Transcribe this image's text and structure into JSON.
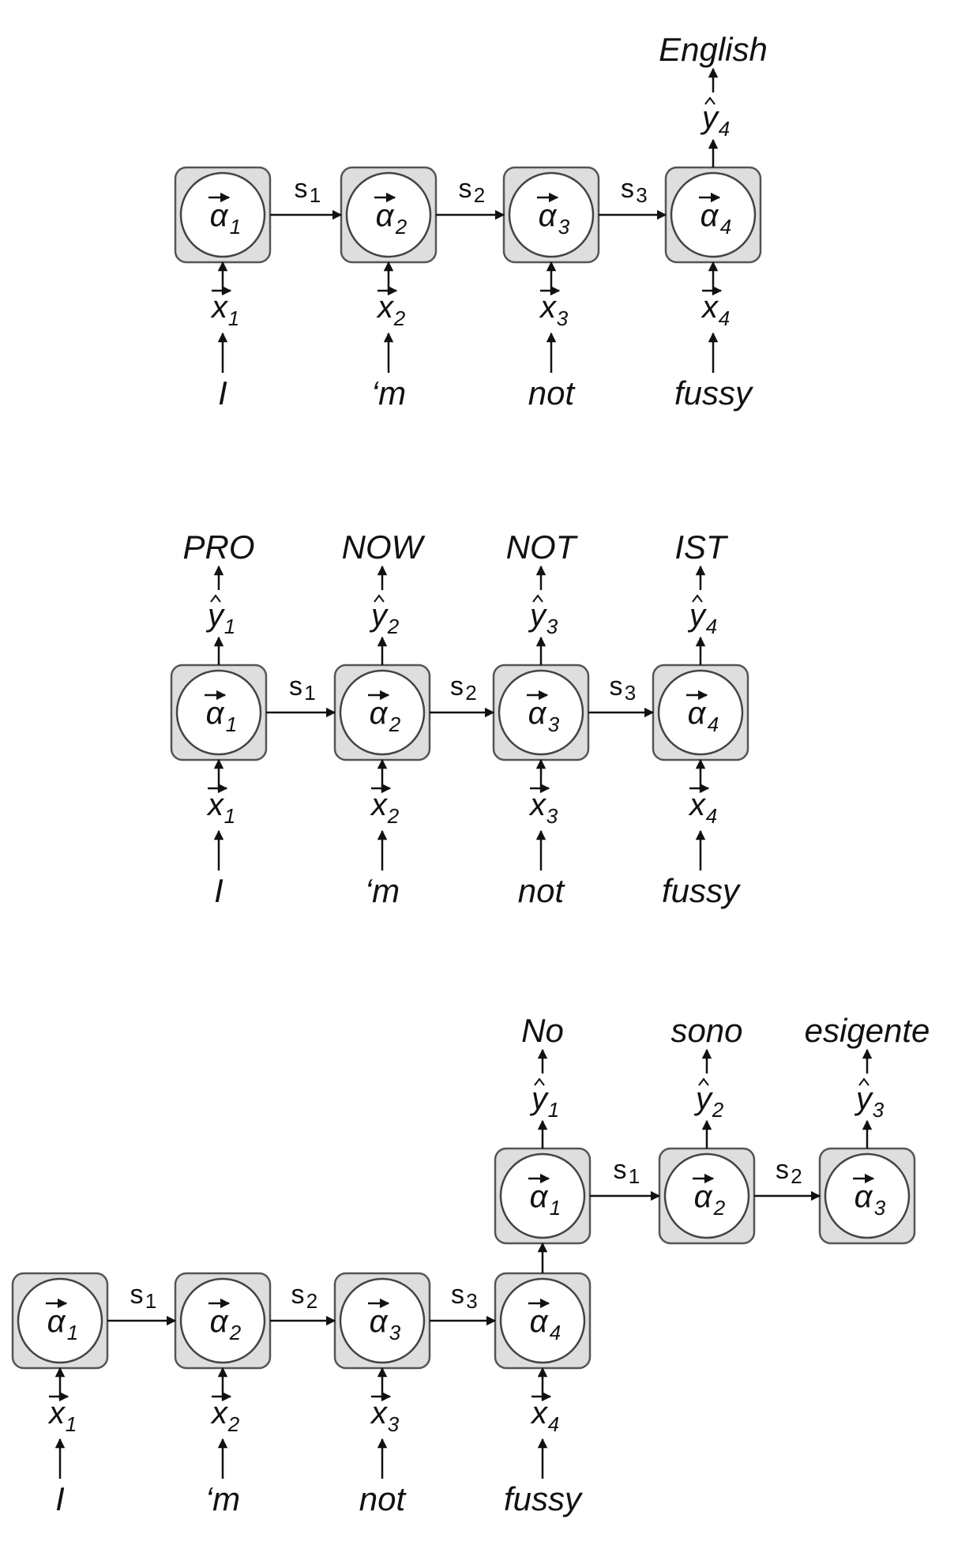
{
  "diagrams": [
    {
      "inputs": [
        "I",
        "‘m",
        "not",
        "fussy"
      ],
      "x_symbols": [
        {
          "s": "x",
          "i": "1"
        },
        {
          "s": "x",
          "i": "2"
        },
        {
          "s": "x",
          "i": "3"
        },
        {
          "s": "x",
          "i": "4"
        }
      ],
      "cells": [
        {
          "s": "α",
          "i": "1"
        },
        {
          "s": "α",
          "i": "2"
        },
        {
          "s": "α",
          "i": "3"
        },
        {
          "s": "α",
          "i": "4"
        }
      ],
      "states": [
        {
          "s": "s",
          "i": "1"
        },
        {
          "s": "s",
          "i": "2"
        },
        {
          "s": "s",
          "i": "3"
        }
      ],
      "outputs": [
        {
          "cell": 3,
          "y": {
            "s": "y",
            "i": "4"
          },
          "word": "English"
        }
      ]
    },
    {
      "inputs": [
        "I",
        "‘m",
        "not",
        "fussy"
      ],
      "x_symbols": [
        {
          "s": "x",
          "i": "1"
        },
        {
          "s": "x",
          "i": "2"
        },
        {
          "s": "x",
          "i": "3"
        },
        {
          "s": "x",
          "i": "4"
        }
      ],
      "cells": [
        {
          "s": "α",
          "i": "1"
        },
        {
          "s": "α",
          "i": "2"
        },
        {
          "s": "α",
          "i": "3"
        },
        {
          "s": "α",
          "i": "4"
        }
      ],
      "states": [
        {
          "s": "s",
          "i": "1"
        },
        {
          "s": "s",
          "i": "2"
        },
        {
          "s": "s",
          "i": "3"
        }
      ],
      "outputs": [
        {
          "cell": 0,
          "y": {
            "s": "y",
            "i": "1"
          },
          "word": "PRO"
        },
        {
          "cell": 1,
          "y": {
            "s": "y",
            "i": "2"
          },
          "word": "NOW"
        },
        {
          "cell": 2,
          "y": {
            "s": "y",
            "i": "3"
          },
          "word": "NOT"
        },
        {
          "cell": 3,
          "y": {
            "s": "y",
            "i": "4"
          },
          "word": "IST"
        }
      ]
    },
    {
      "encoder": {
        "inputs": [
          "I",
          "‘m",
          "not",
          "fussy"
        ],
        "x_symbols": [
          {
            "s": "x",
            "i": "1"
          },
          {
            "s": "x",
            "i": "2"
          },
          {
            "s": "x",
            "i": "3"
          },
          {
            "s": "x",
            "i": "4"
          }
        ],
        "cells": [
          {
            "s": "α",
            "i": "1"
          },
          {
            "s": "α",
            "i": "2"
          },
          {
            "s": "α",
            "i": "3"
          },
          {
            "s": "α",
            "i": "4"
          }
        ],
        "states": [
          {
            "s": "s",
            "i": "1"
          },
          {
            "s": "s",
            "i": "2"
          },
          {
            "s": "s",
            "i": "3"
          }
        ]
      },
      "decoder": {
        "cells": [
          {
            "s": "α",
            "i": "1"
          },
          {
            "s": "α",
            "i": "2"
          },
          {
            "s": "α",
            "i": "3"
          }
        ],
        "states": [
          {
            "s": "s",
            "i": "1"
          },
          {
            "s": "s",
            "i": "2"
          }
        ],
        "outputs": [
          {
            "cell": 0,
            "y": {
              "s": "y",
              "i": "1"
            },
            "word": "No"
          },
          {
            "cell": 1,
            "y": {
              "s": "y",
              "i": "2"
            },
            "word": "sono"
          },
          {
            "cell": 2,
            "y": {
              "s": "y",
              "i": "3"
            },
            "word": "esigente"
          }
        ]
      }
    }
  ]
}
